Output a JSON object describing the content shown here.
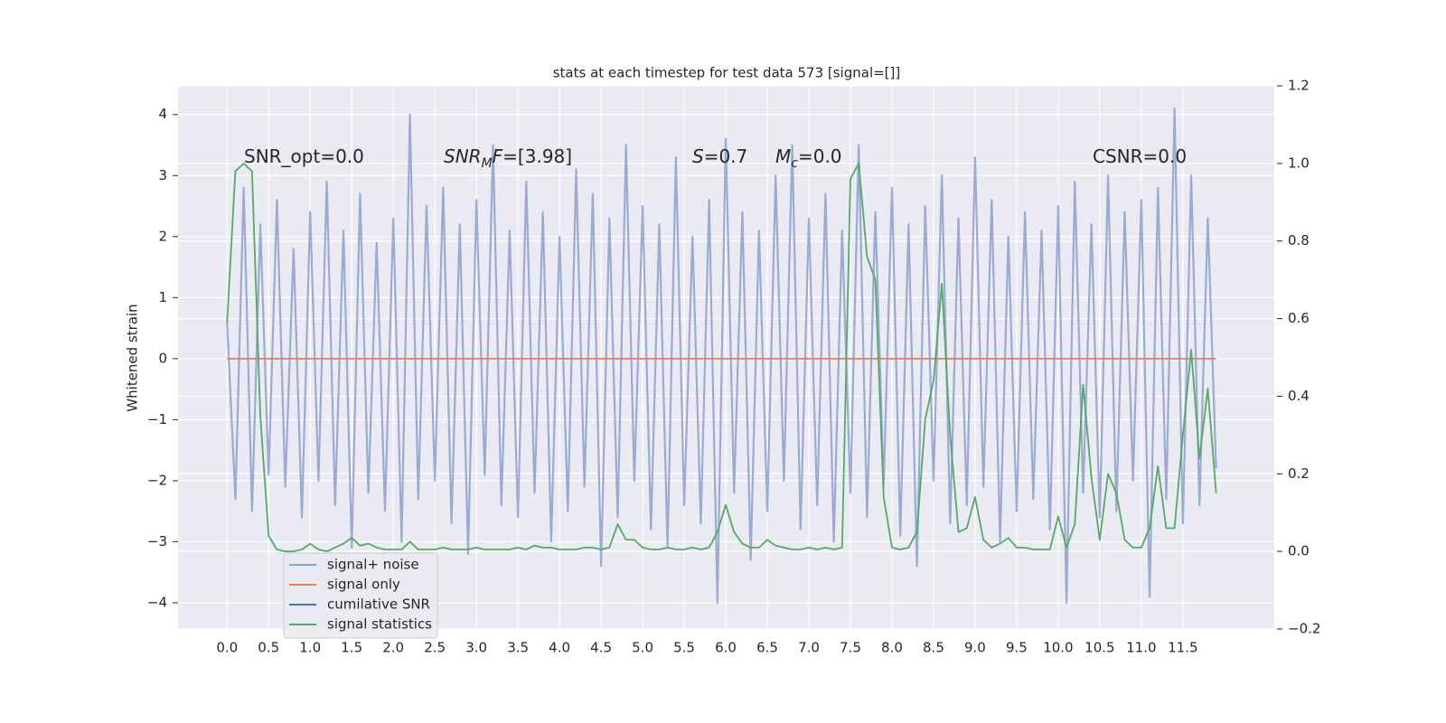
{
  "chart_data": {
    "type": "line",
    "title": "stats at each timestep for test data 573 [signal=[]]",
    "ylabel": "Whitened strain",
    "annotations": [
      [
        {
          "text": "SNR_opt=0.0",
          "style": "normal"
        }
      ],
      [
        {
          "text": "SNR",
          "style": "italic"
        },
        {
          "text": "M",
          "style": "italic-sub"
        },
        {
          "text": "F",
          "style": "italic"
        },
        {
          "text": "=[3.98]",
          "style": "normal"
        }
      ],
      [
        {
          "text": "S",
          "style": "italic"
        },
        {
          "text": "=0.7",
          "style": "normal"
        }
      ],
      [
        {
          "text": "M",
          "style": "italic"
        },
        {
          "text": "c",
          "style": "italic-sub"
        },
        {
          "text": "=0.0",
          "style": "normal"
        }
      ],
      [
        {
          "text": "CSNR=0.0",
          "style": "normal"
        }
      ]
    ],
    "legend": "lower left",
    "grid": true,
    "x": [
      0.0,
      0.1,
      0.2,
      0.3,
      0.4,
      0.5,
      0.6,
      0.7,
      0.8,
      0.9,
      1.0,
      1.1,
      1.2,
      1.3,
      1.4,
      1.5,
      1.6,
      1.7,
      1.8,
      1.9,
      2.0,
      2.1,
      2.2,
      2.3,
      2.4,
      2.5,
      2.6,
      2.7,
      2.8,
      2.9,
      3.0,
      3.1,
      3.2,
      3.3,
      3.4,
      3.5,
      3.6,
      3.7,
      3.8,
      3.9,
      4.0,
      4.1,
      4.2,
      4.3,
      4.4,
      4.5,
      4.6,
      4.7,
      4.8,
      4.9,
      5.0,
      5.1,
      5.2,
      5.3,
      5.4,
      5.5,
      5.6,
      5.7,
      5.8,
      5.9,
      6.0,
      6.1,
      6.2,
      6.3,
      6.4,
      6.5,
      6.6,
      6.7,
      6.8,
      6.9,
      7.0,
      7.1,
      7.2,
      7.3,
      7.4,
      7.5,
      7.6,
      7.7,
      7.8,
      7.9,
      8.0,
      8.1,
      8.2,
      8.3,
      8.4,
      8.5,
      8.6,
      8.7,
      8.8,
      8.9,
      9.0,
      9.1,
      9.2,
      9.3,
      9.4,
      9.5,
      9.6,
      9.7,
      9.8,
      9.9,
      10.0,
      10.1,
      10.2,
      10.3,
      10.4,
      10.5,
      10.6,
      10.7,
      10.8,
      10.9,
      11.0,
      11.1,
      11.2,
      11.3,
      11.4,
      11.5,
      11.6,
      11.7,
      11.8,
      11.9
    ],
    "series": [
      {
        "name": "signal+ noise",
        "color": "#8c9fcc",
        "values": [
          0.6,
          -2.3,
          2.8,
          -2.5,
          2.2,
          -1.9,
          2.6,
          -2.1,
          1.8,
          -2.6,
          2.4,
          -2.0,
          2.9,
          -2.4,
          2.1,
          -3.1,
          2.7,
          -2.2,
          1.9,
          -2.5,
          2.3,
          -3.0,
          4.0,
          -2.3,
          2.5,
          -2.0,
          2.8,
          -2.7,
          2.2,
          -3.2,
          2.6,
          -1.9,
          3.5,
          -2.4,
          2.1,
          -2.6,
          2.9,
          -2.2,
          2.4,
          -3.0,
          2.0,
          -2.5,
          3.1,
          -2.1,
          2.7,
          -3.4,
          2.3,
          -2.6,
          3.5,
          -2.0,
          2.5,
          -2.8,
          2.2,
          -3.1,
          3.3,
          -2.4,
          2.0,
          -2.7,
          2.6,
          -4.0,
          3.6,
          -2.2,
          2.4,
          -3.3,
          2.1,
          -2.5,
          3.0,
          -2.0,
          3.5,
          -2.8,
          2.3,
          -2.4,
          2.7,
          -3.0,
          2.1,
          -2.2,
          3.5,
          -2.6,
          2.4,
          -2.1,
          2.8,
          -2.9,
          2.2,
          -3.4,
          2.5,
          -2.0,
          3.0,
          -2.7,
          2.3,
          -2.4,
          3.3,
          -2.1,
          2.6,
          -3.0,
          2.0,
          -2.5,
          2.4,
          -2.3,
          2.1,
          -2.8,
          2.5,
          -4.0,
          2.9,
          -2.2,
          2.2,
          -2.6,
          3.0,
          -2.5,
          2.4,
          -2.0,
          2.6,
          -3.9,
          2.8,
          -2.3,
          4.1,
          -2.7,
          3.0,
          -2.4,
          2.3,
          -1.8
        ]
      },
      {
        "name": "signal only",
        "color": "#dd8452",
        "values": [
          0,
          0,
          0,
          0,
          0,
          0,
          0,
          0,
          0,
          0,
          0,
          0,
          0,
          0,
          0,
          0,
          0,
          0,
          0,
          0,
          0,
          0,
          0,
          0,
          0,
          0,
          0,
          0,
          0,
          0,
          0,
          0,
          0,
          0,
          0,
          0,
          0,
          0,
          0,
          0,
          0,
          0,
          0,
          0,
          0,
          0,
          0,
          0,
          0,
          0,
          0,
          0,
          0,
          0,
          0,
          0,
          0,
          0,
          0,
          0,
          0,
          0,
          0,
          0,
          0,
          0,
          0,
          0,
          0,
          0,
          0,
          0,
          0,
          0,
          0,
          0,
          0,
          0,
          0,
          0,
          0,
          0,
          0,
          0,
          0,
          0,
          0,
          0,
          0,
          0,
          0,
          0,
          0,
          0,
          0,
          0,
          0,
          0,
          0,
          0,
          0,
          0,
          0,
          0,
          0,
          0,
          0,
          0,
          0,
          0,
          0,
          0,
          0,
          0,
          0,
          0,
          0,
          0,
          0,
          0
        ]
      },
      {
        "name": "cumilative SNR",
        "color": "#4c72b0",
        "values": [
          null,
          null,
          null,
          null,
          null,
          null,
          null,
          null,
          null,
          null,
          null,
          null,
          null,
          null,
          null,
          null,
          null,
          null,
          null,
          null,
          null,
          null,
          null,
          null,
          null,
          null,
          null,
          null,
          null,
          null,
          null,
          null,
          null,
          null,
          null,
          null,
          null,
          null,
          null,
          null,
          null,
          null,
          null,
          null,
          null,
          null,
          null,
          null,
          null,
          null,
          null,
          null,
          null,
          null,
          null,
          null,
          null,
          null,
          null,
          null,
          null,
          null,
          null,
          null,
          null,
          null,
          null,
          null,
          null,
          null,
          null,
          null,
          null,
          null,
          null,
          null,
          null,
          null,
          null,
          null,
          null,
          null,
          null,
          null,
          null,
          null,
          null,
          null,
          null,
          null,
          null,
          null,
          null,
          null,
          null,
          null,
          null,
          null,
          null,
          null,
          null,
          null,
          null,
          null,
          null,
          null,
          null,
          null,
          null,
          null,
          null,
          null,
          null,
          null,
          null,
          null,
          null,
          null,
          null,
          null
        ]
      },
      {
        "name": "signal statistics",
        "color": "#55a868",
        "axis": "y2",
        "values": [
          0.59,
          0.98,
          1.0,
          0.98,
          0.35,
          0.04,
          0.005,
          0.0,
          0.0,
          0.005,
          0.02,
          0.005,
          0.0,
          0.01,
          0.02,
          0.035,
          0.015,
          0.02,
          0.01,
          0.005,
          0.005,
          0.005,
          0.025,
          0.005,
          0.005,
          0.005,
          0.01,
          0.005,
          0.005,
          0.005,
          0.01,
          0.005,
          0.005,
          0.005,
          0.005,
          0.01,
          0.005,
          0.015,
          0.01,
          0.01,
          0.005,
          0.005,
          0.005,
          0.01,
          0.01,
          0.005,
          0.01,
          0.07,
          0.03,
          0.03,
          0.01,
          0.005,
          0.005,
          0.01,
          0.005,
          0.005,
          0.01,
          0.005,
          0.01,
          0.05,
          0.12,
          0.05,
          0.02,
          0.01,
          0.01,
          0.03,
          0.015,
          0.01,
          0.005,
          0.005,
          0.01,
          0.005,
          0.01,
          0.005,
          0.01,
          0.96,
          1.0,
          0.76,
          0.7,
          0.14,
          0.01,
          0.005,
          0.01,
          0.05,
          0.34,
          0.44,
          0.69,
          0.3,
          0.05,
          0.06,
          0.14,
          0.03,
          0.01,
          0.02,
          0.035,
          0.01,
          0.01,
          0.005,
          0.005,
          0.005,
          0.09,
          0.01,
          0.07,
          0.43,
          0.19,
          0.03,
          0.2,
          0.15,
          0.03,
          0.01,
          0.01,
          0.06,
          0.22,
          0.06,
          0.06,
          0.3,
          0.52,
          0.24,
          0.42,
          0.15
        ]
      }
    ],
    "xlim": [
      -0.59,
      12.6
    ],
    "xticks": [
      {
        "value": 0,
        "label": "0.0"
      },
      0.5,
      {
        "value": 1,
        "label": "1.0"
      },
      1.5,
      {
        "value": 2,
        "label": "2.0"
      },
      2.5,
      {
        "value": 3,
        "label": "3.0"
      },
      3.5,
      {
        "value": 4,
        "label": "4.0"
      },
      4.5,
      {
        "value": 5,
        "label": "5.0"
      },
      5.5,
      {
        "value": 6,
        "label": "6.0"
      },
      6.5,
      {
        "value": 7,
        "label": "7.0"
      },
      7.5,
      {
        "value": 8,
        "label": "8.0"
      },
      8.5,
      {
        "value": 9,
        "label": "9.0"
      },
      9.5,
      {
        "value": 10,
        "label": "10.0"
      },
      10.5,
      {
        "value": 11,
        "label": "11.0"
      },
      11.5
    ],
    "ylim": [
      -4.43,
      4.47
    ],
    "yticks": [
      {
        "value": -4,
        "label": "−4"
      },
      {
        "value": -3,
        "label": "−3"
      },
      {
        "value": -2,
        "label": "−2"
      },
      {
        "value": -1,
        "label": "−1"
      },
      0,
      1,
      2,
      3,
      4
    ],
    "y2lim": [
      -0.2,
      1.2
    ],
    "y2ticks": [
      {
        "value": -0.2,
        "label": "−0.2"
      },
      {
        "value": 0,
        "label": "0.0"
      },
      0.2,
      0.4,
      0.6,
      0.8,
      {
        "value": 1,
        "label": "1.0"
      },
      1.2
    ]
  }
}
